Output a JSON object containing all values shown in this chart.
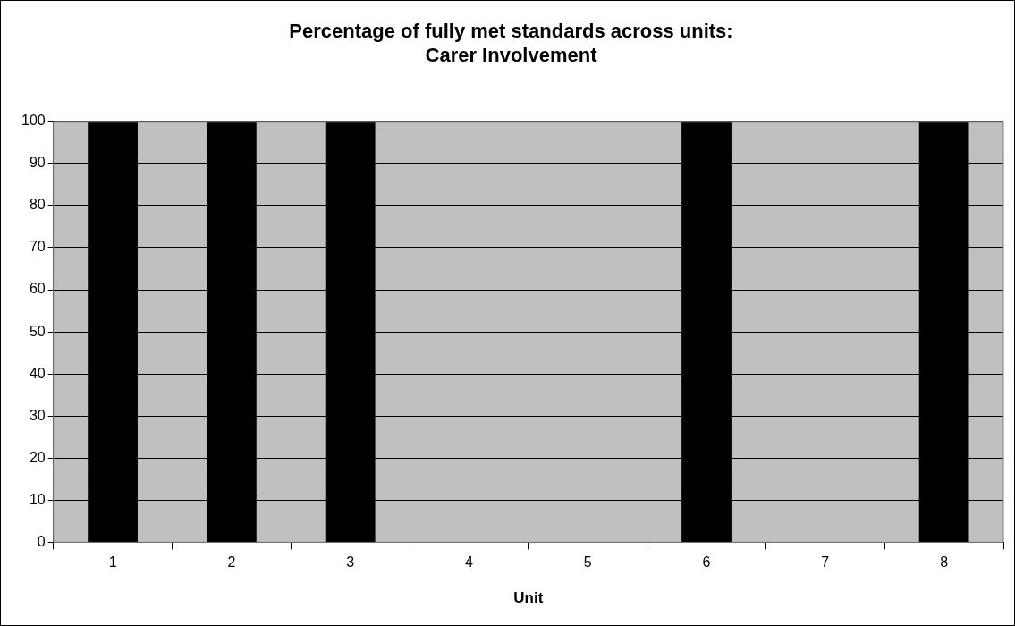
{
  "chart_data": {
    "type": "bar",
    "title": "Percentage of fully met standards across units:\nCarer Involvement",
    "xlabel": "Unit",
    "categories": [
      "1",
      "2",
      "3",
      "4",
      "5",
      "6",
      "7",
      "8"
    ],
    "values": [
      100,
      100,
      100,
      0,
      0,
      100,
      0,
      100
    ],
    "color": "#000000",
    "ylim": [
      0,
      100
    ],
    "yticks": [
      0,
      10,
      20,
      30,
      40,
      50,
      60,
      70,
      80,
      90,
      100
    ],
    "grid": "y",
    "legend": false
  }
}
